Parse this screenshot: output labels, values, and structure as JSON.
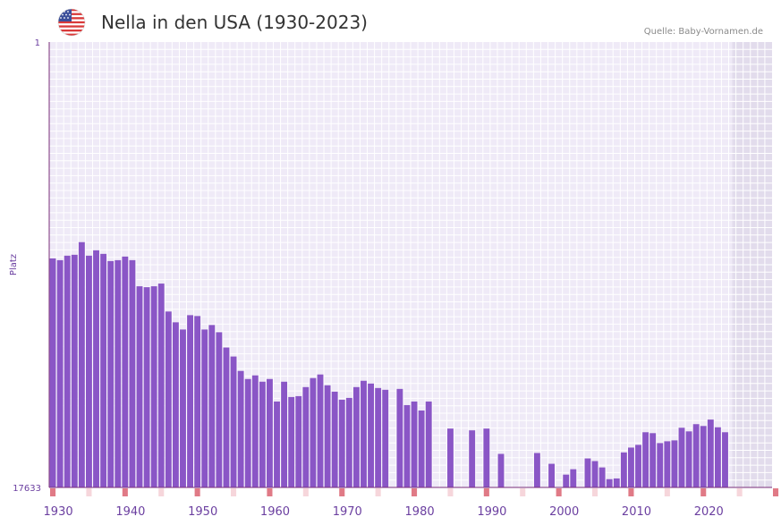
{
  "header": {
    "title": "Nella in den USA (1930-2023)",
    "source": "Quelle: Baby-Vornamen.de",
    "flag_icon": "usa-flag-icon"
  },
  "chart_data": {
    "type": "bar",
    "title": "Nella in den USA (1930-2023)",
    "xlabel": "",
    "ylabel": "Platz",
    "y_top_label": "1",
    "y_bottom_label": "17633",
    "ylim": [
      1,
      17633
    ],
    "y_inverted": true,
    "x_range": [
      1929,
      2029
    ],
    "data_end_year": 2023,
    "x_ticks": [
      "1930",
      "1940",
      "1950",
      "1960",
      "1970",
      "1980",
      "1990",
      "2000",
      "2010",
      "2020"
    ],
    "tick_years": [
      1930,
      1940,
      1950,
      1960,
      1970,
      1980,
      1990,
      2000,
      2010,
      2020
    ],
    "colors": {
      "bar": "#8a56c6",
      "axis": "#7a2e78",
      "tick_text": "#6b3fa0",
      "marker": "#e07a86",
      "marker_light": "#f6d6db",
      "grid": "#ffffff",
      "plot_bg": "#efeaf7",
      "future_bg": "#e2dcec"
    },
    "series": [
      {
        "name": "Nella",
        "years": [
          1929,
          1930,
          1931,
          1932,
          1933,
          1934,
          1935,
          1936,
          1937,
          1938,
          1939,
          1940,
          1941,
          1942,
          1943,
          1944,
          1945,
          1946,
          1947,
          1948,
          1949,
          1950,
          1951,
          1952,
          1953,
          1954,
          1955,
          1956,
          1957,
          1958,
          1959,
          1960,
          1961,
          1962,
          1963,
          1964,
          1965,
          1966,
          1967,
          1968,
          1969,
          1970,
          1971,
          1972,
          1973,
          1974,
          1975,
          1976,
          1977,
          1978,
          1979,
          1980,
          1981,
          1982,
          1983,
          1984,
          1985,
          1986,
          1987,
          1988,
          1989,
          1990,
          1991,
          1992,
          1993,
          1994,
          1995,
          1996,
          1997,
          1998,
          1999,
          2000,
          2001,
          2002,
          2003,
          2004,
          2005,
          2006,
          2007,
          2008,
          2009,
          2010,
          2011,
          2012,
          2013,
          2014,
          2015,
          2016,
          2017,
          2018,
          2019,
          2020,
          2021,
          2022,
          2023
        ],
        "values": [
          8566,
          8637,
          8458,
          8423,
          7923,
          8458,
          8244,
          8387,
          8672,
          8637,
          8494,
          8636,
          9670,
          9706,
          9670,
          9563,
          10669,
          11096,
          11381,
          10813,
          10848,
          11381,
          11203,
          11488,
          12094,
          12450,
          13021,
          13340,
          13198,
          13447,
          13340,
          14232,
          13448,
          14054,
          14019,
          13661,
          13304,
          13161,
          13590,
          13840,
          14161,
          14089,
          13661,
          13411,
          13519,
          13697,
          13768,
          null,
          13733,
          14374,
          14232,
          14588,
          14232,
          null,
          null,
          15302,
          null,
          null,
          15373,
          null,
          15302,
          null,
          16305,
          null,
          null,
          null,
          null,
          16270,
          null,
          16697,
          null,
          17126,
          16912,
          null,
          16484,
          16590,
          16841,
          17305,
          17277,
          16248,
          16055,
          15948,
          15448,
          15484,
          15876,
          15806,
          15770,
          15271,
          15414,
          15128,
          15200,
          14947,
          15252,
          15448,
          null
        ]
      }
    ],
    "markers": [
      {
        "year": 1929,
        "style": "strong"
      },
      {
        "year": 1934,
        "style": "light"
      },
      {
        "year": 1939,
        "style": "strong"
      },
      {
        "year": 1944,
        "style": "light"
      },
      {
        "year": 1949,
        "style": "strong"
      },
      {
        "year": 1954,
        "style": "light"
      },
      {
        "year": 1959,
        "style": "strong"
      },
      {
        "year": 1964,
        "style": "light"
      },
      {
        "year": 1969,
        "style": "strong"
      },
      {
        "year": 1974,
        "style": "light"
      },
      {
        "year": 1979,
        "style": "strong"
      },
      {
        "year": 1984,
        "style": "light"
      },
      {
        "year": 1989,
        "style": "strong"
      },
      {
        "year": 1994,
        "style": "light"
      },
      {
        "year": 1999,
        "style": "strong"
      },
      {
        "year": 2004,
        "style": "light"
      },
      {
        "year": 2009,
        "style": "strong"
      },
      {
        "year": 2014,
        "style": "light"
      },
      {
        "year": 2019,
        "style": "strong"
      },
      {
        "year": 2024,
        "style": "light"
      },
      {
        "year": 2029,
        "style": "strong"
      }
    ]
  }
}
